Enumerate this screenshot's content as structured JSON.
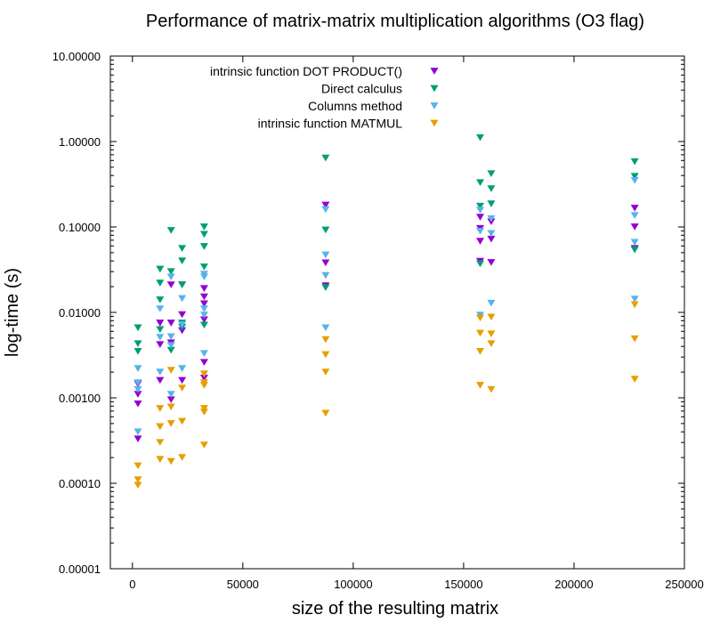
{
  "chart_data": {
    "type": "scatter",
    "title": "Performance of matrix-matrix multiplication algorithms (O3 flag)",
    "xlabel": "size of the resulting matrix",
    "ylabel": "log-time (s)",
    "xlim": [
      -10000,
      250000
    ],
    "ylim": [
      1e-05,
      10
    ],
    "yscale": "log",
    "x_ticks": [
      0,
      50000,
      100000,
      150000,
      200000,
      250000
    ],
    "x_tick_labels": [
      "0",
      "50000",
      "100000",
      "150000",
      "200000",
      "250000"
    ],
    "y_ticks": [
      1e-05,
      0.0001,
      0.001,
      0.01,
      0.1,
      1,
      10
    ],
    "y_tick_labels": [
      "0.00001",
      "0.00010",
      "0.00100",
      "0.01000",
      "0.10000",
      "1.00000",
      "10.00000"
    ],
    "grid": false,
    "legend_position": "top-right",
    "marker": "down-triangle",
    "series": [
      {
        "name": "intrinsic function DOT PRODUCT()",
        "color": "#9400d3",
        "x": [
          2500,
          2500,
          2500,
          2500,
          12500,
          12500,
          12500,
          17500,
          17500,
          17500,
          17500,
          22500,
          22500,
          22500,
          22500,
          32500,
          32500,
          32500,
          32500,
          32500,
          32500,
          87500,
          87500,
          87500,
          157500,
          157500,
          157500,
          157500,
          162500,
          162500,
          162500,
          227500,
          227500,
          227500
        ],
        "y": [
          0.0011,
          0.00145,
          0.00085,
          0.00033,
          0.0075,
          0.0042,
          0.0016,
          0.021,
          0.0075,
          0.0044,
          0.00095,
          0.021,
          0.0094,
          0.0061,
          0.0016,
          0.019,
          0.0152,
          0.0126,
          0.0082,
          0.0026,
          0.0017,
          0.18,
          0.038,
          0.0205,
          0.13,
          0.096,
          0.068,
          0.0396,
          0.115,
          0.072,
          0.0384,
          0.166,
          0.1,
          0.056
        ]
      },
      {
        "name": "Direct calculus",
        "color": "#009e73",
        "x": [
          2500,
          2500,
          2500,
          12500,
          12500,
          12500,
          12500,
          17500,
          17500,
          17500,
          22500,
          22500,
          22500,
          22500,
          22500,
          32500,
          32500,
          32500,
          32500,
          32500,
          87500,
          87500,
          87500,
          157500,
          157500,
          157500,
          157500,
          162500,
          162500,
          162500,
          227500,
          227500,
          227500
        ],
        "y": [
          0.0066,
          0.0043,
          0.0035,
          0.032,
          0.022,
          0.014,
          0.0063,
          0.091,
          0.03,
          0.0036,
          0.056,
          0.04,
          0.021,
          0.0075,
          0.0067,
          0.1,
          0.082,
          0.059,
          0.034,
          0.0071,
          0.64,
          0.092,
          0.0195,
          1.11,
          0.33,
          0.175,
          0.037,
          0.42,
          0.28,
          0.186,
          0.58,
          0.39,
          0.054
        ]
      },
      {
        "name": "Columns method",
        "color": "#56b4e9",
        "x": [
          2500,
          2500,
          2500,
          2500,
          12500,
          12500,
          12500,
          17500,
          17500,
          17500,
          17500,
          22500,
          22500,
          22500,
          32500,
          32500,
          32500,
          32500,
          32500,
          87500,
          87500,
          87500,
          87500,
          157500,
          157500,
          157500,
          162500,
          162500,
          162500,
          227500,
          227500,
          227500,
          227500
        ],
        "y": [
          0.0022,
          0.0015,
          0.00125,
          0.0004,
          0.011,
          0.0051,
          0.002,
          0.026,
          0.0052,
          0.0041,
          0.0011,
          0.0145,
          0.0072,
          0.0022,
          0.028,
          0.026,
          0.011,
          0.0093,
          0.0033,
          0.16,
          0.047,
          0.027,
          0.0066,
          0.157,
          0.089,
          0.0093,
          0.125,
          0.084,
          0.0128,
          0.35,
          0.136,
          0.066,
          0.0143
        ]
      },
      {
        "name": "intrinsic function MATMUL",
        "color": "#e69f00",
        "x": [
          2500,
          2500,
          2500,
          12500,
          12500,
          12500,
          12500,
          17500,
          17500,
          17500,
          17500,
          22500,
          22500,
          22500,
          32500,
          32500,
          32500,
          32500,
          32500,
          32500,
          87500,
          87500,
          87500,
          87500,
          157500,
          157500,
          157500,
          157500,
          162500,
          162500,
          162500,
          162500,
          227500,
          227500,
          227500
        ],
        "y": [
          0.00016,
          0.00011,
          9.5e-05,
          0.00075,
          0.00046,
          0.0003,
          0.00019,
          0.0021,
          0.00078,
          0.0005,
          0.00018,
          0.0013,
          0.00053,
          0.0002,
          0.0019,
          0.0015,
          0.0014,
          0.00075,
          0.00068,
          0.00028,
          0.0048,
          0.0032,
          0.002,
          0.00066,
          0.0086,
          0.0057,
          0.0035,
          0.0014,
          0.0088,
          0.0056,
          0.0043,
          0.00125,
          0.0123,
          0.0049,
          0.00165
        ]
      }
    ]
  }
}
